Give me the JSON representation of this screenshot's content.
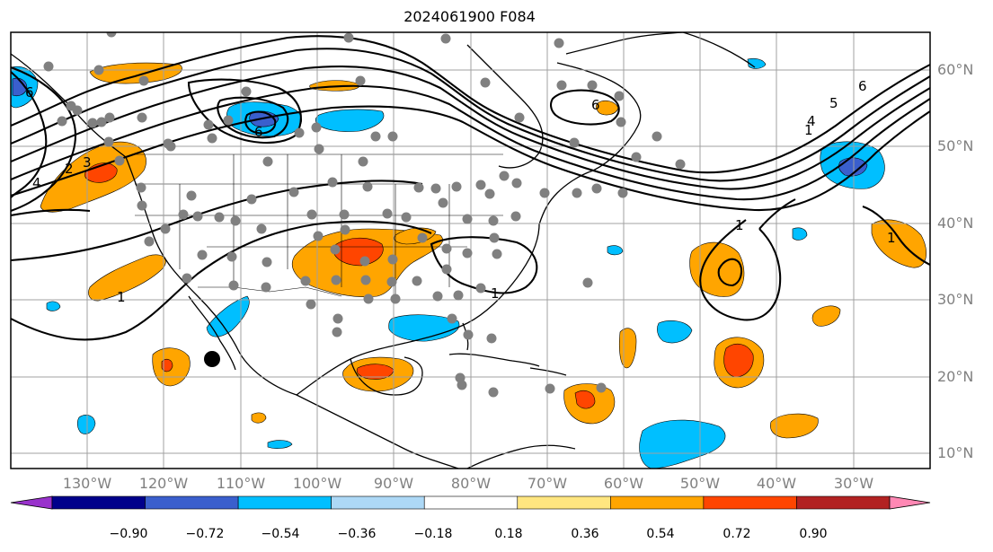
{
  "title": "2024061900 F084",
  "latitude_labels": [
    "60°N",
    "50°N",
    "40°N",
    "30°N",
    "20°N",
    "10°N"
  ],
  "longitude_labels": [
    "130°W",
    "120°W",
    "110°W",
    "100°W",
    "90°W",
    "80°W",
    "70°W",
    "60°W",
    "50°W",
    "40°W",
    "30°W"
  ],
  "colorbar": {
    "ticks": [
      "−0.90",
      "−0.72",
      "−0.54",
      "−0.36",
      "−0.18",
      "0.18",
      "0.36",
      "0.54",
      "0.72",
      "0.90"
    ],
    "colors": [
      "#9932cc",
      "#00008b",
      "#3a5fcd",
      "#00bfff",
      "#add8f6",
      "#ffffff",
      "#ffe680",
      "#ffa500",
      "#ff4500",
      "#b22222",
      "#ff88b4"
    ]
  },
  "contour_labels": [
    "6",
    "6",
    "6",
    "5",
    "4",
    "4",
    "3",
    "2",
    "1",
    "1",
    "1",
    "1",
    "1",
    "6"
  ],
  "colors": {
    "positive_moderate": "#ffa500",
    "positive_strong": "#ff4500",
    "negative_moderate": "#00bfff",
    "negative_strong": "#3a5fcd",
    "station_dot": "#808080",
    "grid": "#a0a0a0"
  }
}
